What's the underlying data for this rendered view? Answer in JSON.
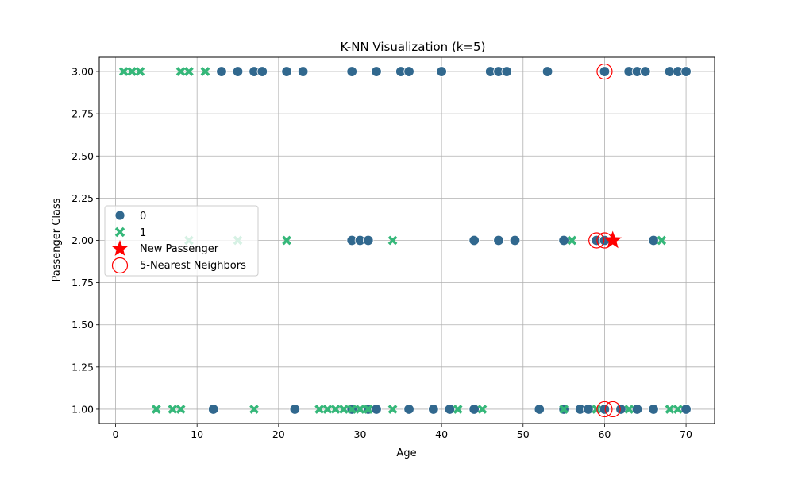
{
  "chart_data": {
    "type": "scatter",
    "title": "K-NN Visualization (k=5)",
    "xlabel": "Age",
    "ylabel": "Passenger Class",
    "xlim": [
      -2,
      73.5
    ],
    "ylim": [
      0.915,
      3.085
    ],
    "xticks": [
      0,
      10,
      20,
      30,
      40,
      50,
      60,
      70
    ],
    "yticks": [
      1.0,
      1.25,
      1.5,
      1.75,
      2.0,
      2.25,
      2.5,
      2.75,
      3.0
    ],
    "xtick_labels": [
      "0",
      "10",
      "20",
      "30",
      "40",
      "50",
      "60",
      "70"
    ],
    "ytick_labels": [
      "1.00",
      "1.25",
      "1.50",
      "1.75",
      "2.00",
      "2.25",
      "2.50",
      "2.75",
      "3.00"
    ],
    "grid": true,
    "legend_position": "center-left",
    "colors": {
      "class_0": "#31688e",
      "class_1": "#35b779",
      "new_passenger": "#ff0000",
      "neighbors": "#ff0000",
      "grid": "#b0b0b0"
    },
    "series": [
      {
        "name": "0",
        "marker": "circle",
        "points": [
          [
            13,
            3
          ],
          [
            15,
            3
          ],
          [
            17,
            3
          ],
          [
            18,
            3
          ],
          [
            21,
            3
          ],
          [
            23,
            3
          ],
          [
            29,
            3
          ],
          [
            32,
            3
          ],
          [
            35,
            3
          ],
          [
            36,
            3
          ],
          [
            40,
            3
          ],
          [
            46,
            3
          ],
          [
            47,
            3
          ],
          [
            48,
            3
          ],
          [
            53,
            3
          ],
          [
            60,
            3
          ],
          [
            63,
            3
          ],
          [
            64,
            3
          ],
          [
            65,
            3
          ],
          [
            68,
            3
          ],
          [
            69,
            3
          ],
          [
            70,
            3
          ],
          [
            29,
            2
          ],
          [
            30,
            2
          ],
          [
            31,
            2
          ],
          [
            44,
            2
          ],
          [
            47,
            2
          ],
          [
            49,
            2
          ],
          [
            55,
            2
          ],
          [
            59,
            2
          ],
          [
            60,
            2
          ],
          [
            66,
            2
          ],
          [
            12,
            1
          ],
          [
            22,
            1
          ],
          [
            29,
            1
          ],
          [
            31,
            1
          ],
          [
            32,
            1
          ],
          [
            36,
            1
          ],
          [
            39,
            1
          ],
          [
            41,
            1
          ],
          [
            44,
            1
          ],
          [
            52,
            1
          ],
          [
            55,
            1
          ],
          [
            57,
            1
          ],
          [
            58,
            1
          ],
          [
            60,
            1
          ],
          [
            62,
            1
          ],
          [
            64,
            1
          ],
          [
            66,
            1
          ],
          [
            70,
            1
          ]
        ]
      },
      {
        "name": "1",
        "marker": "x",
        "points": [
          [
            1,
            3
          ],
          [
            2,
            3
          ],
          [
            3,
            3
          ],
          [
            8,
            3
          ],
          [
            9,
            3
          ],
          [
            11,
            3
          ],
          [
            9,
            2
          ],
          [
            15,
            2
          ],
          [
            21,
            2
          ],
          [
            34,
            2
          ],
          [
            56,
            2
          ],
          [
            67,
            2
          ],
          [
            5,
            1
          ],
          [
            7,
            1
          ],
          [
            8,
            1
          ],
          [
            17,
            1
          ],
          [
            25,
            1
          ],
          [
            26,
            1
          ],
          [
            27,
            1
          ],
          [
            28,
            1
          ],
          [
            29,
            1
          ],
          [
            30,
            1
          ],
          [
            31,
            1
          ],
          [
            34,
            1
          ],
          [
            42,
            1
          ],
          [
            45,
            1
          ],
          [
            55,
            1
          ],
          [
            59,
            1
          ],
          [
            63,
            1
          ],
          [
            68,
            1
          ],
          [
            69,
            1
          ]
        ]
      }
    ],
    "new_passenger": {
      "name": "New Passenger",
      "x": 61,
      "y": 2
    },
    "neighbors": {
      "name": "5-Nearest Neighbors",
      "points": [
        [
          60,
          3
        ],
        [
          59,
          2
        ],
        [
          60,
          2
        ],
        [
          60,
          1
        ],
        [
          61,
          1
        ]
      ]
    }
  }
}
